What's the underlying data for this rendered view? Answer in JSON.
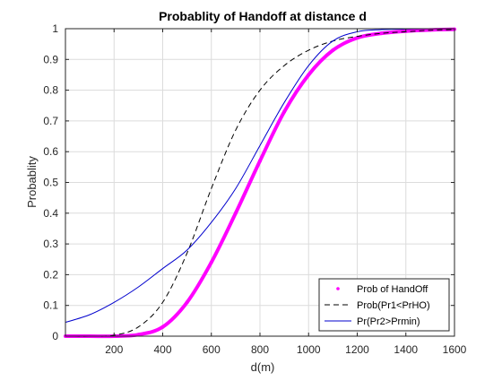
{
  "chart_data": {
    "type": "line",
    "title": "Probablity of Handoff at distance d",
    "xlabel": "d(m)",
    "ylabel": "Probablity",
    "xlim": [
      0,
      1600
    ],
    "ylim": [
      0,
      1
    ],
    "xticks": [
      200,
      400,
      600,
      800,
      1000,
      1200,
      1400,
      1600
    ],
    "yticks": [
      0,
      0.1,
      0.2,
      0.3,
      0.4,
      0.5,
      0.6,
      0.7,
      0.8,
      0.9,
      1
    ],
    "grid": true,
    "legend_position": "bottom-right",
    "series": [
      {
        "name": "Prob of HandOff",
        "color": "#ff00ff",
        "style": "markers",
        "x": [
          0,
          100,
          200,
          300,
          400,
          500,
          600,
          700,
          800,
          900,
          1000,
          1100,
          1200,
          1300,
          1400,
          1500,
          1600
        ],
        "y": [
          0,
          0,
          0,
          0.005,
          0.03,
          0.11,
          0.24,
          0.4,
          0.57,
          0.73,
          0.85,
          0.93,
          0.97,
          0.985,
          0.992,
          0.996,
          0.998
        ]
      },
      {
        "name": "Prob(Pr1<PrHO)",
        "color": "#000000",
        "style": "dashed",
        "x": [
          0,
          100,
          200,
          300,
          400,
          500,
          600,
          700,
          800,
          900,
          1000,
          1100,
          1200,
          1300,
          1400,
          1500,
          1600
        ],
        "y": [
          0,
          0,
          0.003,
          0.03,
          0.11,
          0.27,
          0.48,
          0.67,
          0.8,
          0.88,
          0.93,
          0.96,
          0.975,
          0.985,
          0.99,
          0.995,
          0.997
        ]
      },
      {
        "name": "Pr(Pr2>Prmin)",
        "color": "#0000cd",
        "style": "solid",
        "x": [
          0,
          100,
          200,
          300,
          400,
          500,
          600,
          700,
          800,
          900,
          1000,
          1100,
          1200,
          1300,
          1400,
          1500,
          1600
        ],
        "y": [
          0.045,
          0.07,
          0.11,
          0.16,
          0.22,
          0.28,
          0.37,
          0.48,
          0.62,
          0.76,
          0.88,
          0.96,
          0.99,
          0.997,
          0.999,
          1.0,
          1.0
        ]
      }
    ]
  }
}
